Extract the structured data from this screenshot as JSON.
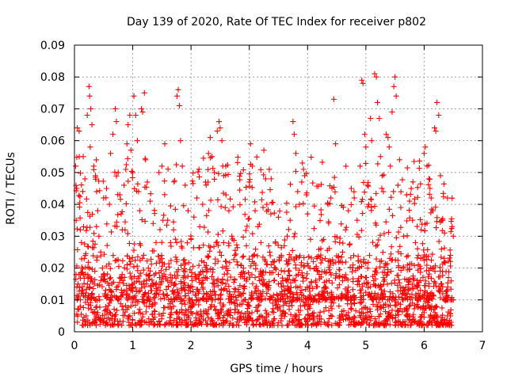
{
  "chart_data": {
    "type": "scatter",
    "title": "Day 139 of 2020, Rate Of TEC Index for receiver p802",
    "xlabel": "GPS time / hours",
    "ylabel": "ROTI / TECUs",
    "xlim": [
      0,
      7
    ],
    "ylim": [
      0,
      0.09
    ],
    "x_ticks": [
      "0",
      "1",
      "2",
      "3",
      "4",
      "5",
      "6",
      "7"
    ],
    "y_ticks": [
      "0",
      "0.01",
      "0.02",
      "0.03",
      "0.04",
      "0.05",
      "0.06",
      "0.07",
      "0.08",
      "0.09"
    ],
    "grid": true,
    "marker": "+",
    "color": "#ff0000",
    "series": [
      {
        "name": "ROTI",
        "points": [
          [
            0.02,
            0.052
          ],
          [
            0.05,
            0.064
          ],
          [
            0.08,
            0.063
          ],
          [
            0.04,
            0.045
          ],
          [
            0.03,
            0.035
          ],
          [
            0.1,
            0.032
          ],
          [
            0.06,
            0.015
          ],
          [
            0.12,
            0.028
          ],
          [
            0.15,
            0.055
          ],
          [
            0.18,
            0.048
          ],
          [
            0.22,
            0.068
          ],
          [
            0.25,
            0.077
          ],
          [
            0.26,
            0.074
          ],
          [
            0.28,
            0.07
          ],
          [
            0.3,
            0.065
          ],
          [
            0.27,
            0.058
          ],
          [
            0.33,
            0.052
          ],
          [
            0.36,
            0.049
          ],
          [
            0.38,
            0.044
          ],
          [
            0.4,
            0.038
          ],
          [
            0.42,
            0.03
          ],
          [
            0.45,
            0.025
          ],
          [
            0.48,
            0.02
          ],
          [
            0.5,
            0.042
          ],
          [
            0.55,
            0.045
          ],
          [
            0.6,
            0.04
          ],
          [
            0.62,
            0.056
          ],
          [
            0.66,
            0.062
          ],
          [
            0.7,
            0.07
          ],
          [
            0.72,
            0.066
          ],
          [
            0.75,
            0.05
          ],
          [
            0.78,
            0.043
          ],
          [
            0.8,
            0.037
          ],
          [
            0.82,
            0.032
          ],
          [
            0.85,
            0.046
          ],
          [
            0.88,
            0.051
          ],
          [
            0.9,
            0.059
          ],
          [
            0.92,
            0.065
          ],
          [
            0.95,
            0.068
          ],
          [
            0.97,
            0.057
          ],
          [
            1.0,
            0.05
          ],
          [
            1.02,
            0.074
          ],
          [
            1.05,
            0.068
          ],
          [
            1.08,
            0.06
          ],
          [
            1.1,
            0.044
          ],
          [
            1.12,
            0.038
          ],
          [
            1.15,
            0.07
          ],
          [
            1.17,
            0.069
          ],
          [
            1.2,
            0.075
          ],
          [
            1.22,
            0.054
          ],
          [
            1.25,
            0.047
          ],
          [
            1.3,
            0.041
          ],
          [
            1.35,
            0.034
          ],
          [
            1.4,
            0.028
          ],
          [
            1.45,
            0.05
          ],
          [
            1.5,
            0.052
          ],
          [
            1.55,
            0.059
          ],
          [
            1.6,
            0.035
          ],
          [
            1.65,
            0.028
          ],
          [
            1.7,
            0.032
          ],
          [
            1.76,
            0.074
          ],
          [
            1.78,
            0.076
          ],
          [
            1.8,
            0.071
          ],
          [
            1.82,
            0.06
          ],
          [
            1.85,
            0.052
          ],
          [
            1.9,
            0.046
          ],
          [
            1.95,
            0.038
          ],
          [
            2.0,
            0.029
          ],
          [
            2.05,
            0.036
          ],
          [
            2.1,
            0.042
          ],
          [
            2.15,
            0.033
          ],
          [
            2.2,
            0.04
          ],
          [
            2.25,
            0.047
          ],
          [
            2.3,
            0.056
          ],
          [
            2.33,
            0.061
          ],
          [
            2.36,
            0.055
          ],
          [
            2.4,
            0.05
          ],
          [
            2.45,
            0.063
          ],
          [
            2.48,
            0.066
          ],
          [
            2.5,
            0.064
          ],
          [
            2.53,
            0.06
          ],
          [
            2.56,
            0.049
          ],
          [
            2.6,
            0.043
          ],
          [
            2.65,
            0.038
          ],
          [
            2.7,
            0.03
          ],
          [
            2.75,
            0.024
          ],
          [
            2.8,
            0.021
          ],
          [
            2.85,
            0.018
          ],
          [
            2.9,
            0.02
          ],
          [
            2.95,
            0.027
          ],
          [
            3.0,
            0.047
          ],
          [
            3.02,
            0.059
          ],
          [
            3.05,
            0.052
          ],
          [
            3.1,
            0.038
          ],
          [
            3.15,
            0.033
          ],
          [
            3.2,
            0.028
          ],
          [
            3.25,
            0.057
          ],
          [
            3.28,
            0.048
          ],
          [
            3.3,
            0.04
          ],
          [
            3.35,
            0.025
          ],
          [
            3.4,
            0.022
          ],
          [
            3.45,
            0.02
          ],
          [
            3.5,
            0.018
          ],
          [
            3.55,
            0.024
          ],
          [
            3.6,
            0.027
          ],
          [
            3.65,
            0.03
          ],
          [
            3.7,
            0.035
          ],
          [
            3.75,
            0.066
          ],
          [
            3.77,
            0.062
          ],
          [
            3.8,
            0.056
          ],
          [
            3.83,
            0.044
          ],
          [
            3.86,
            0.04
          ],
          [
            3.9,
            0.047
          ],
          [
            3.93,
            0.051
          ],
          [
            3.95,
            0.049
          ],
          [
            3.98,
            0.043
          ],
          [
            4.0,
            0.037
          ],
          [
            4.05,
            0.029
          ],
          [
            4.1,
            0.022
          ],
          [
            4.15,
            0.02
          ],
          [
            4.2,
            0.018
          ],
          [
            4.3,
            0.023
          ],
          [
            4.35,
            0.04
          ],
          [
            4.4,
            0.042
          ],
          [
            4.45,
            0.073
          ],
          [
            4.48,
            0.059
          ],
          [
            4.55,
            0.028
          ],
          [
            4.6,
            0.025
          ],
          [
            4.65,
            0.032
          ],
          [
            4.7,
            0.038
          ],
          [
            4.75,
            0.045
          ],
          [
            4.8,
            0.042
          ],
          [
            4.85,
            0.035
          ],
          [
            4.9,
            0.052
          ],
          [
            4.93,
            0.079
          ],
          [
            4.95,
            0.078
          ],
          [
            4.98,
            0.062
          ],
          [
            5.0,
            0.058
          ],
          [
            5.03,
            0.046
          ],
          [
            5.05,
            0.04
          ],
          [
            5.08,
            0.067
          ],
          [
            5.1,
            0.06
          ],
          [
            5.15,
            0.081
          ],
          [
            5.18,
            0.08
          ],
          [
            5.2,
            0.072
          ],
          [
            5.23,
            0.067
          ],
          [
            5.25,
            0.055
          ],
          [
            5.28,
            0.049
          ],
          [
            5.3,
            0.044
          ],
          [
            5.35,
            0.062
          ],
          [
            5.38,
            0.061
          ],
          [
            5.4,
            0.058
          ],
          [
            5.42,
            0.052
          ],
          [
            5.45,
            0.069
          ],
          [
            5.48,
            0.077
          ],
          [
            5.5,
            0.08
          ],
          [
            5.52,
            0.074
          ],
          [
            5.55,
            0.046
          ],
          [
            5.6,
            0.039
          ],
          [
            5.65,
            0.03
          ],
          [
            5.7,
            0.043
          ],
          [
            5.75,
            0.041
          ],
          [
            5.8,
            0.035
          ],
          [
            5.85,
            0.028
          ],
          [
            5.9,
            0.024
          ],
          [
            5.95,
            0.032
          ],
          [
            6.0,
            0.056
          ],
          [
            6.02,
            0.058
          ],
          [
            6.05,
            0.052
          ],
          [
            6.08,
            0.048
          ],
          [
            6.1,
            0.045
          ],
          [
            6.12,
            0.042
          ],
          [
            6.15,
            0.038
          ],
          [
            6.18,
            0.064
          ],
          [
            6.2,
            0.063
          ],
          [
            6.22,
            0.072
          ],
          [
            6.25,
            0.068
          ],
          [
            6.28,
            0.049
          ],
          [
            6.3,
            0.035
          ],
          [
            6.35,
            0.031
          ],
          [
            6.4,
            0.042
          ],
          [
            6.45,
            0.024
          ],
          [
            6.48,
            0.033
          ],
          [
            6.5,
            0.03
          ],
          [
            0.1,
            0.008
          ],
          [
            0.2,
            0.005
          ],
          [
            0.3,
            0.012
          ],
          [
            0.4,
            0.006
          ],
          [
            0.5,
            0.018
          ],
          [
            0.6,
            0.009
          ],
          [
            0.7,
            0.004
          ],
          [
            0.8,
            0.011
          ],
          [
            0.9,
            0.007
          ],
          [
            1.0,
            0.014
          ],
          [
            1.1,
            0.006
          ],
          [
            1.2,
            0.009
          ],
          [
            1.3,
            0.003
          ],
          [
            1.4,
            0.012
          ],
          [
            1.5,
            0.005
          ],
          [
            1.6,
            0.016
          ],
          [
            1.7,
            0.008
          ],
          [
            1.8,
            0.004
          ],
          [
            1.9,
            0.013
          ],
          [
            2.0,
            0.006
          ],
          [
            2.1,
            0.01
          ],
          [
            2.2,
            0.019
          ],
          [
            2.3,
            0.007
          ],
          [
            2.4,
            0.015
          ],
          [
            2.5,
            0.009
          ],
          [
            2.6,
            0.022
          ],
          [
            2.7,
            0.011
          ],
          [
            2.8,
            0.006
          ],
          [
            2.9,
            0.014
          ],
          [
            3.0,
            0.008
          ],
          [
            3.1,
            0.017
          ],
          [
            3.2,
            0.005
          ],
          [
            3.3,
            0.012
          ],
          [
            3.4,
            0.009
          ],
          [
            3.5,
            0.015
          ],
          [
            3.6,
            0.006
          ],
          [
            3.7,
            0.011
          ],
          [
            3.8,
            0.004
          ],
          [
            3.9,
            0.013
          ],
          [
            4.0,
            0.007
          ],
          [
            4.1,
            0.01
          ],
          [
            4.2,
            0.005
          ],
          [
            4.3,
            0.014
          ],
          [
            4.4,
            0.008
          ],
          [
            4.5,
            0.011
          ],
          [
            4.6,
            0.016
          ],
          [
            4.7,
            0.006
          ],
          [
            4.8,
            0.009
          ],
          [
            4.9,
            0.013
          ],
          [
            5.0,
            0.005
          ],
          [
            5.1,
            0.012
          ],
          [
            5.2,
            0.008
          ],
          [
            5.3,
            0.017
          ],
          [
            5.4,
            0.006
          ],
          [
            5.5,
            0.01
          ],
          [
            5.6,
            0.014
          ],
          [
            5.7,
            0.005
          ],
          [
            5.8,
            0.009
          ],
          [
            5.9,
            0.012
          ],
          [
            6.0,
            0.006
          ],
          [
            6.1,
            0.011
          ],
          [
            6.2,
            0.008
          ],
          [
            6.3,
            0.015
          ],
          [
            6.4,
            0.005
          ],
          [
            6.5,
            0.01
          ],
          [
            0.05,
            0.003
          ],
          [
            0.15,
            0.002
          ],
          [
            0.35,
            0.004
          ],
          [
            0.55,
            0.003
          ],
          [
            0.75,
            0.002
          ],
          [
            0.95,
            0.005
          ],
          [
            1.15,
            0.003
          ],
          [
            1.35,
            0.004
          ],
          [
            1.55,
            0.002
          ],
          [
            1.75,
            0.003
          ],
          [
            1.95,
            0.005
          ],
          [
            2.15,
            0.003
          ],
          [
            2.35,
            0.004
          ],
          [
            2.55,
            0.002
          ],
          [
            2.75,
            0.006
          ],
          [
            2.95,
            0.003
          ],
          [
            3.15,
            0.004
          ],
          [
            3.35,
            0.002
          ],
          [
            3.55,
            0.005
          ],
          [
            3.75,
            0.003
          ],
          [
            3.95,
            0.004
          ],
          [
            4.15,
            0.002
          ],
          [
            4.35,
            0.003
          ],
          [
            4.55,
            0.005
          ],
          [
            4.75,
            0.003
          ],
          [
            4.95,
            0.004
          ],
          [
            5.15,
            0.002
          ],
          [
            5.35,
            0.004
          ],
          [
            5.55,
            0.003
          ],
          [
            5.75,
            0.005
          ],
          [
            5.95,
            0.002
          ],
          [
            6.15,
            0.004
          ],
          [
            6.35,
            0.003
          ],
          [
            6.45,
            0.005
          ]
        ]
      }
    ]
  }
}
